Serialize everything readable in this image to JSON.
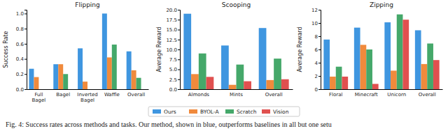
{
  "chart_data": [
    {
      "type": "bar",
      "title": "Flipping",
      "y_label": "Success Rate",
      "categories": [
        "Full Bagel",
        "Bagel",
        "Inverted Bagel",
        "Waffle",
        "Overall"
      ],
      "series": [
        {
          "name": "Ours",
          "color": "#3f96e0",
          "values": [
            0.27,
            0.33,
            0.54,
            1.0,
            0.5
          ]
        },
        {
          "name": "BYOL-A",
          "color": "#f08a3c",
          "values": [
            0.16,
            0.33,
            0.1,
            0.42,
            0.25
          ]
        },
        {
          "name": "Scratch",
          "color": "#45a86a",
          "values": [
            0,
            0.2,
            0,
            0.59,
            0.15
          ]
        },
        {
          "name": "Vision",
          "color": "#e0504f",
          "values": [
            0,
            0,
            0,
            0,
            0
          ]
        }
      ],
      "ylim": [
        0,
        1.05
      ],
      "yticks": [
        {
          "value": 0,
          "label": "0.0"
        },
        0.2,
        0.4,
        0.6,
        0.8,
        {
          "value": 1,
          "label": "1.0"
        }
      ]
    },
    {
      "type": "bar",
      "title": "Scooping",
      "y_label": "Average Reward",
      "categories": [
        "Almonds",
        "Mints",
        "Overall"
      ],
      "series": [
        {
          "name": "Ours",
          "color": "#3f96e0",
          "values": [
            19,
            11,
            15.4
          ]
        },
        {
          "name": "BYOL-A",
          "color": "#f08a3c",
          "values": [
            3.8,
            1.1,
            2.3
          ]
        },
        {
          "name": "Scratch",
          "color": "#45a86a",
          "values": [
            9,
            6.2,
            7.7
          ]
        },
        {
          "name": "Vision",
          "color": "#e0504f",
          "values": [
            3.1,
            2.0,
            2.5
          ]
        }
      ],
      "ylim": [
        0,
        20
      ],
      "yticks": [
        {
          "value": 0,
          "label": "0.0"
        },
        2.5,
        {
          "value": 5,
          "label": "5.0"
        },
        7.5,
        {
          "value": 10,
          "label": "10.0"
        },
        12.5,
        {
          "value": 15,
          "label": "15.0"
        },
        17.5,
        {
          "value": 20,
          "label": "20.0"
        }
      ]
    },
    {
      "type": "bar",
      "title": "Zipping",
      "y_label": "Average Reward",
      "categories": [
        "Floral",
        "Minecraft",
        "Unicorn",
        "Overall"
      ],
      "series": [
        {
          "name": "Ours",
          "color": "#3f96e0",
          "values": [
            7.5,
            9.3,
            10.1,
            8.9
          ]
        },
        {
          "name": "BYOL-A",
          "color": "#f08a3c",
          "values": [
            1.9,
            6.7,
            2.8,
            3.8
          ]
        },
        {
          "name": "Scratch",
          "color": "#45a86a",
          "values": [
            3.4,
            6.0,
            11.3,
            6.9
          ]
        },
        {
          "name": "Vision",
          "color": "#e0504f",
          "values": [
            1.9,
            0.8,
            10.5,
            4.4
          ]
        }
      ],
      "ylim": [
        0,
        12
      ],
      "yticks": [
        0,
        2,
        4,
        6,
        8,
        10,
        12
      ]
    }
  ],
  "caption": "Fig. 4: Success rates across methods and tasks. Our method, shown in blue, outperforms baselines in all but one setu"
}
